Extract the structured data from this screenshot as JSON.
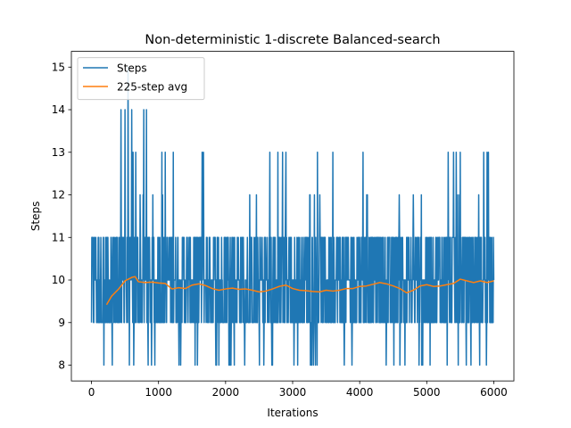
{
  "chart_data": {
    "type": "line",
    "title": "Non-deterministic 1-discrete Balanced-search",
    "xlabel": "Iterations",
    "ylabel": "Steps",
    "xlim": [
      -300,
      6300
    ],
    "ylim": [
      7.63,
      15.37
    ],
    "xticks": [
      0,
      1000,
      2000,
      3000,
      4000,
      5000,
      6000
    ],
    "yticks": [
      8,
      9,
      10,
      11,
      12,
      13,
      14,
      15
    ],
    "grid": false,
    "legend_position": "upper-left",
    "series": [
      {
        "name": "Steps",
        "color": "#1f77b4",
        "x_range": [
          0,
          6000
        ],
        "typical_min": 9,
        "typical_max": 11,
        "min": 8,
        "max": 15,
        "spikes": [
          {
            "x": 440,
            "y": 14
          },
          {
            "x": 500,
            "y": 14
          },
          {
            "x": 545,
            "y": 15
          },
          {
            "x": 600,
            "y": 14
          },
          {
            "x": 620,
            "y": 13
          },
          {
            "x": 660,
            "y": 13
          },
          {
            "x": 780,
            "y": 14
          },
          {
            "x": 820,
            "y": 14
          },
          {
            "x": 1050,
            "y": 13
          },
          {
            "x": 1100,
            "y": 13
          },
          {
            "x": 1220,
            "y": 13
          },
          {
            "x": 1650,
            "y": 13
          },
          {
            "x": 1670,
            "y": 13
          },
          {
            "x": 2660,
            "y": 13
          },
          {
            "x": 2780,
            "y": 13
          },
          {
            "x": 2850,
            "y": 13
          },
          {
            "x": 2900,
            "y": 13
          },
          {
            "x": 3370,
            "y": 13
          },
          {
            "x": 3600,
            "y": 13
          },
          {
            "x": 4050,
            "y": 13
          },
          {
            "x": 5320,
            "y": 13
          },
          {
            "x": 5400,
            "y": 13
          },
          {
            "x": 5440,
            "y": 13
          },
          {
            "x": 5500,
            "y": 13
          },
          {
            "x": 5850,
            "y": 13
          },
          {
            "x": 5900,
            "y": 13
          },
          {
            "x": 5920,
            "y": 13
          }
        ]
      },
      {
        "name": "225-step avg",
        "color": "#ff7f0e",
        "x": [
          225,
          300,
          400,
          500,
          600,
          650,
          700,
          800,
          900,
          1000,
          1100,
          1200,
          1300,
          1400,
          1500,
          1600,
          1700,
          1800,
          1900,
          2000,
          2100,
          2200,
          2300,
          2400,
          2500,
          2600,
          2700,
          2800,
          2900,
          3000,
          3100,
          3200,
          3300,
          3400,
          3500,
          3600,
          3700,
          3800,
          3900,
          4000,
          4100,
          4200,
          4300,
          4400,
          4500,
          4600,
          4700,
          4800,
          4900,
          5000,
          5100,
          5200,
          5300,
          5400,
          5500,
          5600,
          5700,
          5800,
          5900,
          6000
        ],
        "y": [
          9.42,
          9.62,
          9.78,
          9.98,
          10.06,
          10.08,
          9.96,
          9.94,
          9.95,
          9.93,
          9.92,
          9.79,
          9.82,
          9.8,
          9.88,
          9.91,
          9.87,
          9.8,
          9.76,
          9.79,
          9.81,
          9.78,
          9.79,
          9.76,
          9.72,
          9.74,
          9.79,
          9.85,
          9.88,
          9.8,
          9.76,
          9.75,
          9.73,
          9.72,
          9.76,
          9.74,
          9.76,
          9.8,
          9.8,
          9.85,
          9.86,
          9.9,
          9.94,
          9.91,
          9.86,
          9.8,
          9.7,
          9.76,
          9.86,
          9.89,
          9.85,
          9.86,
          9.89,
          9.92,
          10.02,
          9.98,
          9.94,
          9.98,
          9.94,
          9.98
        ]
      }
    ]
  }
}
